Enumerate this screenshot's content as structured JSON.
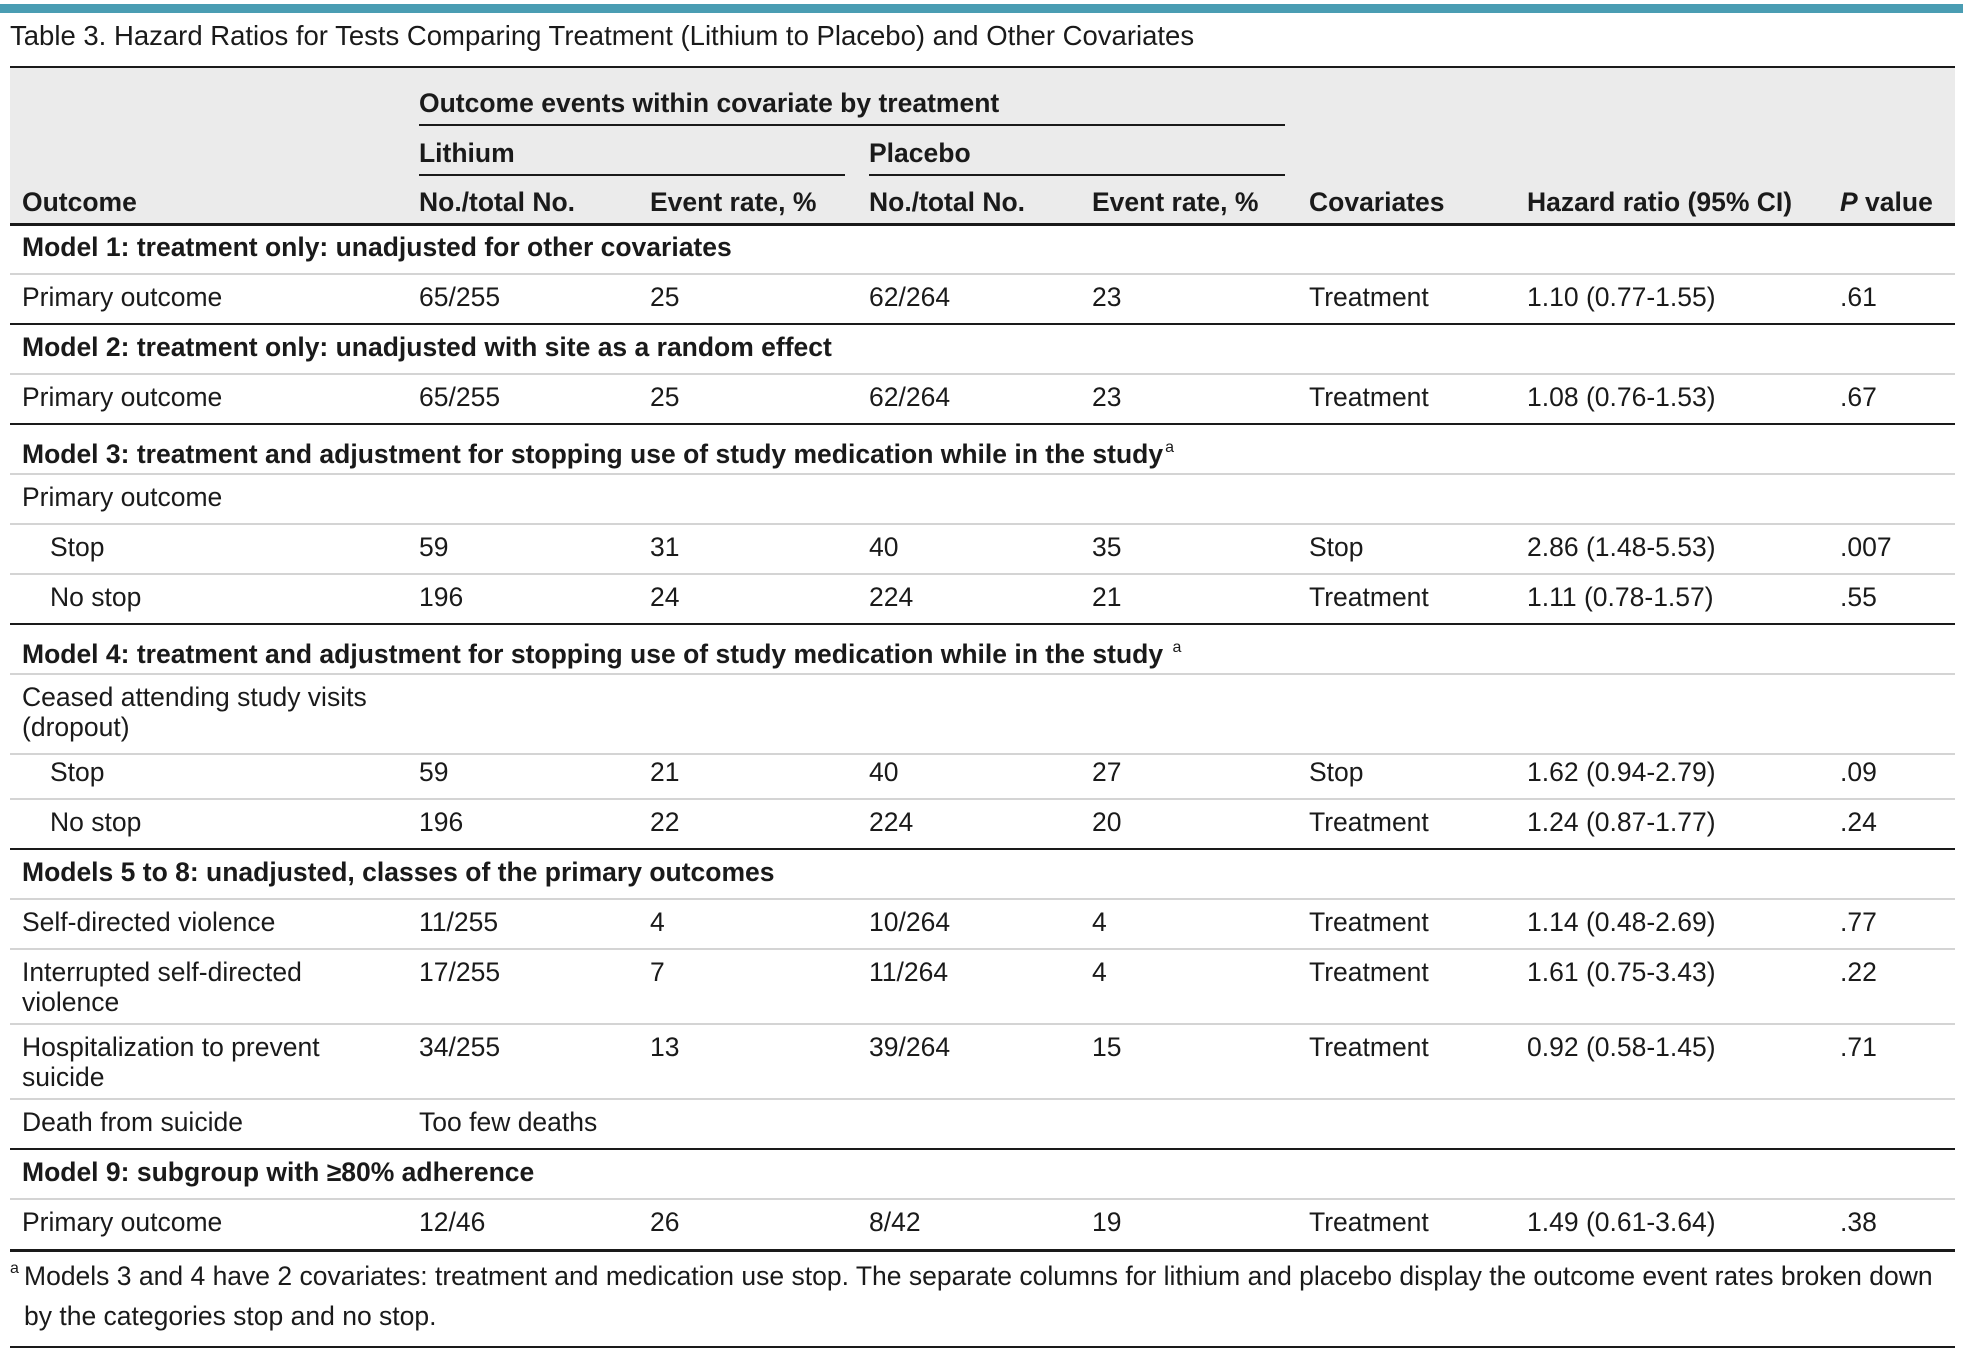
{
  "title": "Table 3. Hazard Ratios for Tests Comparing Treatment (Lithium to Placebo) and Other Covariates",
  "header": {
    "group": "Outcome events within covariate by treatment",
    "lithium": "Lithium",
    "placebo": "Placebo",
    "outcome": "Outcome",
    "li_no": "No./total No.",
    "li_rate": "Event rate, %",
    "pl_no": "No./total No.",
    "pl_rate": "Event rate, %",
    "covariates": "Covariates",
    "hr": "Hazard ratio (95% CI)",
    "p_italic": "P",
    "p_rest": " value"
  },
  "models": {
    "m1": "Model 1: treatment only: unadjusted for other covariates",
    "m2": "Model 2: treatment only: unadjusted with site as a random effect",
    "m3": "Model 3: treatment and adjustment for stopping use of study medication while in the study",
    "m4": "Model 4: treatment and adjustment for stopping use of study medication while in the study ",
    "m58": "Models 5 to 8: unadjusted, classes of the primary outcomes",
    "m9": "Model 9: subgroup with ≥80% adherence",
    "sup": "a"
  },
  "rows": {
    "r1": {
      "label": "Primary outcome",
      "li_no": "65/255",
      "li_rate": "25",
      "pl_no": "62/264",
      "pl_rate": "23",
      "cov": "Treatment",
      "hr": "1.10 (0.77-1.55)",
      "p": ".61"
    },
    "r2": {
      "label": "Primary outcome",
      "li_no": "65/255",
      "li_rate": "25",
      "pl_no": "62/264",
      "pl_rate": "23",
      "cov": "Treatment",
      "hr": "1.08 (0.76-1.53)",
      "p": ".67"
    },
    "r3h": {
      "label": "Primary outcome"
    },
    "r3a": {
      "label": "Stop",
      "li_no": "59",
      "li_rate": "31",
      "pl_no": "40",
      "pl_rate": "35",
      "cov": "Stop",
      "hr": "2.86 (1.48-5.53)",
      "p": ".007"
    },
    "r3b": {
      "label": "No stop",
      "li_no": "196",
      "li_rate": "24",
      "pl_no": "224",
      "pl_rate": "21",
      "cov": "Treatment",
      "hr": "1.11 (0.78-1.57)",
      "p": ".55"
    },
    "r4h": {
      "label1": "Ceased attending study visits",
      "label2": "(dropout)"
    },
    "r4a": {
      "label": "Stop",
      "li_no": "59",
      "li_rate": "21",
      "pl_no": "40",
      "pl_rate": "27",
      "cov": "Stop",
      "hr": "1.62 (0.94-2.79)",
      "p": ".09"
    },
    "r4b": {
      "label": "No stop",
      "li_no": "196",
      "li_rate": "22",
      "pl_no": "224",
      "pl_rate": "20",
      "cov": "Treatment",
      "hr": "1.24 (0.87-1.77)",
      "p": ".24"
    },
    "r5": {
      "label": "Self-directed violence",
      "li_no": "11/255",
      "li_rate": "4",
      "pl_no": "10/264",
      "pl_rate": "4",
      "cov": "Treatment",
      "hr": "1.14 (0.48-2.69)",
      "p": ".77"
    },
    "r6": {
      "label1": "Interrupted self-directed",
      "label2": "violence",
      "li_no": "17/255",
      "li_rate": "7",
      "pl_no": "11/264",
      "pl_rate": "4",
      "cov": "Treatment",
      "hr": "1.61 (0.75-3.43)",
      "p": ".22"
    },
    "r7": {
      "label1": "Hospitalization to prevent",
      "label2": "suicide",
      "li_no": "34/255",
      "li_rate": "13",
      "pl_no": "39/264",
      "pl_rate": "15",
      "cov": "Treatment",
      "hr": "0.92 (0.58-1.45)",
      "p": ".71"
    },
    "r8": {
      "label": "Death from suicide",
      "li_no": "Too few deaths"
    },
    "r9": {
      "label": "Primary outcome",
      "li_no": "12/46",
      "li_rate": "26",
      "pl_no": "8/42",
      "pl_rate": "19",
      "cov": "Treatment",
      "hr": "1.49 (0.61-3.64)",
      "p": ".38"
    }
  },
  "footnote": {
    "sup": "a",
    "line1": "Models 3 and 4 have 2 covariates: treatment and medication use stop. The separate columns for lithium and placebo display the outcome event rates broken down",
    "line2": "by the categories stop and no stop."
  },
  "colors": {
    "accent": "#4a9db3",
    "shade": "#ebebeb",
    "divider": "#d4d4d4"
  }
}
